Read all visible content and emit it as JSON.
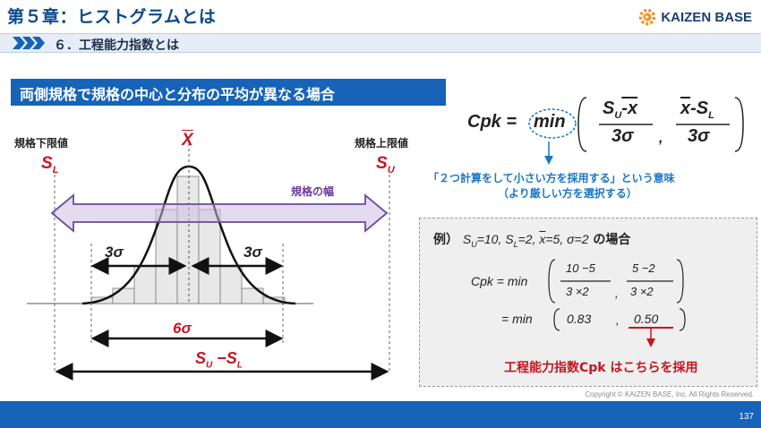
{
  "header": {
    "chapter_title": "第５章：ヒストグラムとは",
    "brand_name": "KAIZEN BASE",
    "brand_color": "#1b3f73",
    "logo_color": "#f2922a",
    "section_title": "６．工程能力指数とは"
  },
  "slide": {
    "title": "両側規格で規格の中心と分布の平均が異なる場合",
    "title_bg": "#1663b8"
  },
  "figure": {
    "lower_limit_label": "規格下限値",
    "upper_limit_label": "規格上限値",
    "sl_main": "S",
    "sl_sub": "L",
    "su_main": "S",
    "su_sub": "U",
    "mean_symbol": "X",
    "spec_width_label": "規格の幅",
    "left_3sigma": "3σ",
    "right_3sigma": "3σ",
    "six_sigma": "6σ",
    "range_s": "S",
    "range_sub_u": "U",
    "range_mid": " −S",
    "range_sub_l": "L"
  },
  "formula": {
    "lhs": "Cpk = ",
    "min": "min",
    "num1": "S",
    "num1_sub": "U",
    "num1_rest": "-x",
    "den1": "3σ",
    "num2_x": "x",
    "num2_rest": "-S",
    "num2_sub": "L",
    "den2": "3σ",
    "comma": ",",
    "note_line1": "「２つ計算をして小さい方を採用する」という意味",
    "note_line2": "（より厳しい方を選択する）"
  },
  "example": {
    "heading_prefix": "例）",
    "heading_su": "S",
    "heading_su_sub": "U",
    "heading_su_val": "=10,",
    "heading_sl": "S",
    "heading_sl_sub": "L",
    "heading_sl_val": "=2,",
    "heading_x": "x",
    "heading_x_val": "=5,",
    "heading_sigma": "σ=2",
    "heading_suffix": "の場合",
    "line1_lhs": "Cpk = min",
    "frac1_num": "10 −5",
    "frac1_den": "3 ×2",
    "frac2_num": "5 −2",
    "frac2_den": "3 ×2",
    "comma": ",",
    "line2_lhs": "= min",
    "val1": "0.83",
    "val2": "0.50",
    "conclusion": "工程能力指数Cpk はこちらを採用"
  },
  "footer": {
    "copyright": "Copyright ©  KAIZEN BASE, Inc.  All Rights Reserved.",
    "page": "137"
  }
}
